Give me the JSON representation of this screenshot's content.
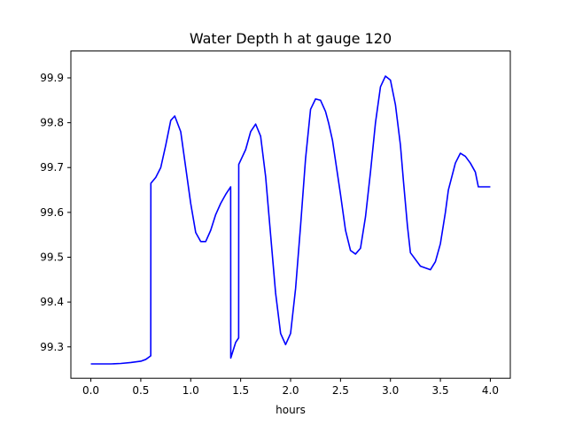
{
  "chart_data": {
    "type": "line",
    "title": "Water Depth h at gauge 120",
    "xlabel": "hours",
    "ylabel": "",
    "xlim": [
      -0.2,
      4.2
    ],
    "ylim": [
      99.23,
      99.96
    ],
    "x_ticks": [
      0.0,
      0.5,
      1.0,
      1.5,
      2.0,
      2.5,
      3.0,
      3.5,
      4.0
    ],
    "x_tick_labels": [
      "0.0",
      "0.5",
      "1.0",
      "1.5",
      "2.0",
      "2.5",
      "3.0",
      "3.5",
      "4.0"
    ],
    "y_ticks": [
      99.3,
      99.4,
      99.5,
      99.6,
      99.7,
      99.8,
      99.9
    ],
    "y_tick_labels": [
      "99.3",
      "99.4",
      "99.5",
      "99.6",
      "99.7",
      "99.8",
      "99.9"
    ],
    "grid": false,
    "series": [
      {
        "color": "#0000ff",
        "x": [
          0.0,
          0.1,
          0.2,
          0.3,
          0.4,
          0.5,
          0.55,
          0.6,
          0.601,
          0.65,
          0.7,
          0.75,
          0.8,
          0.84,
          0.9,
          0.95,
          1.0,
          1.05,
          1.1,
          1.15,
          1.2,
          1.25,
          1.3,
          1.35,
          1.4,
          1.401,
          1.45,
          1.48,
          1.481,
          1.55,
          1.6,
          1.65,
          1.7,
          1.75,
          1.8,
          1.85,
          1.9,
          1.95,
          2.0,
          2.05,
          2.1,
          2.15,
          2.2,
          2.25,
          2.3,
          2.35,
          2.38,
          2.42,
          2.5,
          2.55,
          2.6,
          2.65,
          2.7,
          2.75,
          2.8,
          2.85,
          2.9,
          2.95,
          3.0,
          3.05,
          3.1,
          3.13,
          3.17,
          3.2,
          3.3,
          3.4,
          3.45,
          3.5,
          3.55,
          3.58,
          3.65,
          3.7,
          3.75,
          3.8,
          3.85,
          3.88,
          3.92,
          3.96,
          4.0
        ],
        "y": [
          99.262,
          99.262,
          99.262,
          99.263,
          99.265,
          99.268,
          99.272,
          99.28,
          99.665,
          99.678,
          99.7,
          99.75,
          99.805,
          99.815,
          99.78,
          99.7,
          99.62,
          99.555,
          99.535,
          99.535,
          99.56,
          99.595,
          99.62,
          99.64,
          99.657,
          99.275,
          99.31,
          99.32,
          99.707,
          99.74,
          99.78,
          99.797,
          99.77,
          99.68,
          99.55,
          99.42,
          99.33,
          99.305,
          99.33,
          99.43,
          99.57,
          99.72,
          99.83,
          99.853,
          99.85,
          99.825,
          99.8,
          99.76,
          99.64,
          99.56,
          99.515,
          99.507,
          99.52,
          99.59,
          99.69,
          99.8,
          99.88,
          99.904,
          99.895,
          99.84,
          99.75,
          99.67,
          99.57,
          99.51,
          99.48,
          99.472,
          99.49,
          99.53,
          99.6,
          99.65,
          99.71,
          99.732,
          99.725,
          99.71,
          99.69,
          99.657,
          99.657,
          99.657,
          99.657
        ]
      }
    ]
  }
}
